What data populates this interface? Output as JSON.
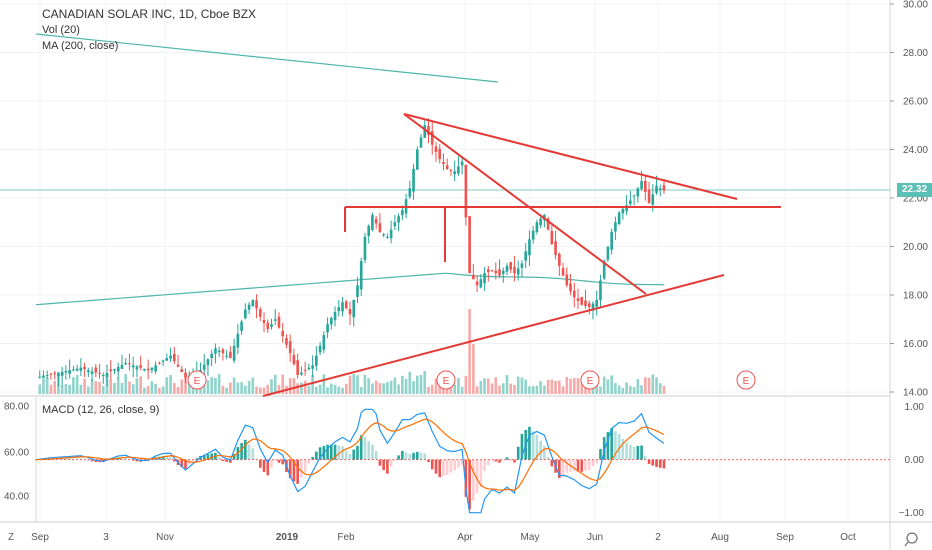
{
  "header": {
    "title": "CANADIAN SOLAR INC, 1D, Cboe BZX",
    "vol_label": "Vol (20)",
    "ma_label": "MA (200, close)",
    "macd_label": "MACD (12, 26, close, 9)"
  },
  "price_axis": {
    "ticks": [
      "30.00",
      "28.00",
      "26.00",
      "24.00",
      "22.00",
      "20.00",
      "18.00",
      "16.00",
      "14.00"
    ],
    "last_price": "22.32"
  },
  "macd_axis": {
    "ticks": [
      "1.00",
      "0.00",
      "−1.00"
    ]
  },
  "left_axis": {
    "ticks": [
      "80.00",
      "60.00",
      "40.00"
    ]
  },
  "time_axis": {
    "ticks": [
      "Sep",
      "3",
      "Nov",
      "2019",
      "Feb",
      "Apr",
      "May",
      "Jun",
      "2",
      "Aug",
      "Sep",
      "Oct"
    ]
  },
  "earnings_marker": "E",
  "corner_left_icon": "Z",
  "colors": {
    "up": "#26a69a",
    "down": "#ef5350",
    "trend": "#e53935",
    "ma200": "#4db6ac",
    "macd_line": "#2196f3",
    "signal_line": "#ff6d00",
    "price_line": "#80cbc4"
  },
  "chart_data": {
    "type": "candlestick",
    "title": "CANADIAN SOLAR INC, 1D, Cboe BZX",
    "ylim": [
      14,
      30
    ],
    "last": 22.32,
    "price_path": [
      [
        0,
        14.6
      ],
      [
        6,
        14.8
      ],
      [
        12,
        15.0
      ],
      [
        18,
        14.7
      ],
      [
        24,
        15.2
      ],
      [
        30,
        14.9
      ],
      [
        36,
        15.5
      ],
      [
        40,
        14.6
      ],
      [
        44,
        14.9
      ],
      [
        48,
        15.8
      ],
      [
        52,
        15.4
      ],
      [
        54,
        16.4
      ],
      [
        56,
        17.4
      ],
      [
        58,
        17.8
      ],
      [
        60,
        17.1
      ],
      [
        62,
        16.6
      ],
      [
        64,
        17.0
      ],
      [
        66,
        16.3
      ],
      [
        68,
        15.6
      ],
      [
        70,
        14.7
      ],
      [
        74,
        15.1
      ],
      [
        76,
        15.9
      ],
      [
        78,
        16.8
      ],
      [
        80,
        17.3
      ],
      [
        82,
        17.7
      ],
      [
        84,
        17.2
      ],
      [
        86,
        18.4
      ],
      [
        88,
        20.4
      ],
      [
        90,
        21.3
      ],
      [
        92,
        20.6
      ],
      [
        94,
        20.4
      ],
      [
        96,
        21.0
      ],
      [
        98,
        21.5
      ],
      [
        100,
        22.4
      ],
      [
        102,
        24.0
      ],
      [
        104,
        25.0
      ],
      [
        106,
        24.2
      ],
      [
        108,
        23.6
      ],
      [
        110,
        23.2
      ],
      [
        112,
        23.1
      ],
      [
        114,
        23.5
      ],
      [
        116,
        18.9
      ],
      [
        118,
        18.4
      ],
      [
        120,
        18.9
      ],
      [
        122,
        19.0
      ],
      [
        124,
        18.8
      ],
      [
        126,
        19.2
      ],
      [
        128,
        18.9
      ],
      [
        130,
        19.3
      ],
      [
        132,
        20.3
      ],
      [
        134,
        21.0
      ],
      [
        136,
        21.3
      ],
      [
        138,
        20.1
      ],
      [
        140,
        19.2
      ],
      [
        142,
        18.4
      ],
      [
        144,
        17.9
      ],
      [
        146,
        17.6
      ],
      [
        148,
        17.5
      ],
      [
        150,
        17.8
      ],
      [
        152,
        19.4
      ],
      [
        154,
        20.6
      ],
      [
        156,
        21.4
      ],
      [
        158,
        21.7
      ],
      [
        160,
        22.1
      ],
      [
        162,
        22.7
      ],
      [
        164,
        21.8
      ],
      [
        166,
        22.5
      ],
      [
        168,
        22.3
      ]
    ],
    "ma200": [
      [
        0,
        17.6
      ],
      [
        116,
        18.9
      ]
    ],
    "annotations": [
      "triangle trendlines",
      "horizontal resistance at 21.6"
    ]
  }
}
